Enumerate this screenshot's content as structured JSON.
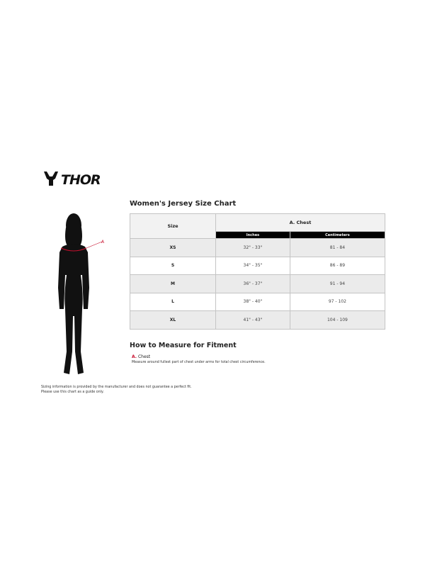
{
  "brand": {
    "name": "THOR"
  },
  "chart_title": "Women's Jersey Size Chart",
  "table": {
    "size_header": "Size",
    "group_header": "A. Chest",
    "sub_headers": [
      "Inches",
      "Centimeters"
    ],
    "rows": [
      {
        "size": "XS",
        "inches": "32\" - 33\"",
        "cm": "81 - 84"
      },
      {
        "size": "S",
        "inches": "34\" - 35\"",
        "cm": "86 - 89"
      },
      {
        "size": "M",
        "inches": "36\" - 37\"",
        "cm": "91 - 94"
      },
      {
        "size": "L",
        "inches": "38\" - 40\"",
        "cm": "97 - 102"
      },
      {
        "size": "XL",
        "inches": "41\" - 43\"",
        "cm": "104 - 109"
      }
    ]
  },
  "figure": {
    "marker": "A",
    "marker_color": "#c8102e"
  },
  "howto": {
    "title": "How to Measure for Fitment",
    "items": [
      {
        "letter": "A.",
        "label": "Chest",
        "description": "Measure around fullest part of chest under arms for total chest circumference."
      }
    ]
  },
  "disclaimer": [
    "Sizing information is provided by the manufacturer and does not guarantee a perfect fit.",
    "Please use this chart as a guide only."
  ]
}
